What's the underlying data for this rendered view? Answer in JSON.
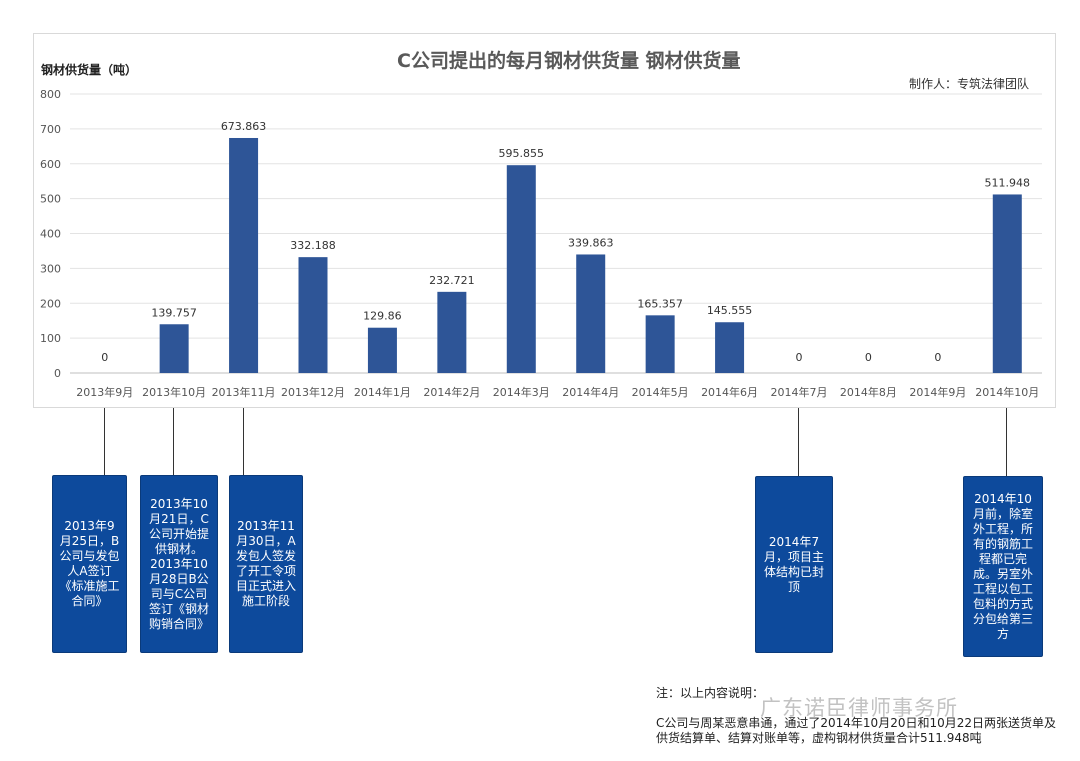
{
  "chart_data": {
    "type": "bar",
    "title": "C公司提出的每月钢材供货量 钢材供货量",
    "ylabel": "钢材供货量（吨）",
    "xlabel": "",
    "credit": "制作人：专筑法律团队",
    "ylim": [
      0,
      800
    ],
    "yticks": [
      0,
      100,
      200,
      300,
      400,
      500,
      600,
      700,
      800
    ],
    "grid": true,
    "bar_color": "#2e5597",
    "categories": [
      "2013年9月",
      "2013年10月",
      "2013年11月",
      "2013年12月",
      "2014年1月",
      "2014年2月",
      "2014年3月",
      "2014年4月",
      "2014年5月",
      "2014年6月",
      "2014年7月",
      "2014年8月",
      "2014年9月",
      "2014年10月"
    ],
    "values": [
      0,
      139.757,
      673.863,
      332.188,
      129.86,
      232.721,
      595.855,
      339.863,
      165.357,
      145.555,
      0,
      0,
      0,
      511.948
    ],
    "value_labels": [
      "0",
      "139.757",
      "673.863",
      "332.188",
      "129.86",
      "232.721",
      "595.855",
      "339.863",
      "165.357",
      "145.555",
      "0",
      "0",
      "0",
      "511.948"
    ]
  },
  "annotations": [
    {
      "category_index": 0,
      "text": "2013年9月25日，B公司与发包人A签订《标准施工合同》"
    },
    {
      "category_index": 1,
      "text": "2013年10月21日，C公司开始提供钢材。2013年10月28日B公司与C公司签订《钢材购销合同》"
    },
    {
      "category_index": 2,
      "text": "2013年11月30日，A发包人签发了开工令项目正式进入施工阶段"
    },
    {
      "category_index": 10,
      "text": "2014年7月，项目主体结构已封顶"
    },
    {
      "category_index": 13,
      "text": "2014年10月前，除室外工程，所有的钢筋工程都已完成。另室外工程以包工包料的方式分包给第三方"
    }
  ],
  "note": {
    "heading": "注：以上内容说明：",
    "body": "C公司与周某恶意串通，通过了2014年10月20日和10月22日两张送货单及供货结算单、结算对账单等，虚构钢材供货量合计511.948吨"
  },
  "watermark": "广东诺臣律师事务所",
  "colors": {
    "bar": "#2e5597",
    "note_box": "#0d4a9c"
  }
}
